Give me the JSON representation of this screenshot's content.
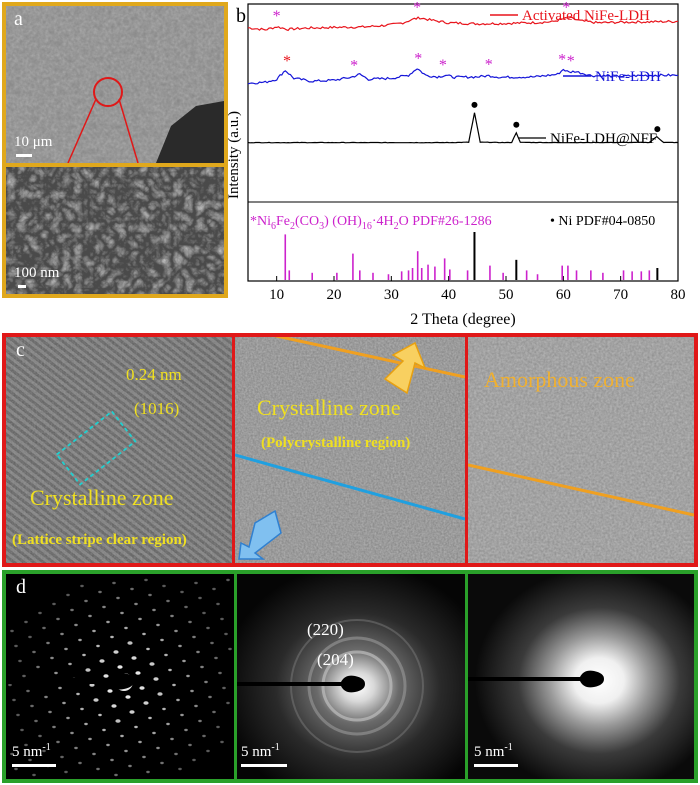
{
  "panel_a": {
    "letter": "a",
    "scale_top": "10 μm",
    "scale_bottom": "100 nm"
  },
  "panel_b": {
    "letter": "b",
    "legend": {
      "activated": "Activated NiFe-LDH",
      "nife": "NiFe-LDH",
      "nff": "NiFe-LDH@NFF"
    },
    "pdf_label_ni6": "*Ni",
    "pdf_label_fe": "6",
    "pdf_label_rest": "Fe",
    "pdf_label_sub2": "2",
    "pdf_label_co3": "(CO",
    "pdf_label_sub3": "3",
    "pdf_label_oh": ") (OH)",
    "pdf_label_sub16": "16",
    "pdf_label_tail": "·4H",
    "pdf_label_sub2b": "2",
    "pdf_label_end": "O PDF#26-1286",
    "pdf_ni": "• Ni PDF#04-0850",
    "colors": {
      "activated": "#e8141c",
      "nife": "#1414d8",
      "nff": "#000000",
      "ref": "#cc22cc"
    }
  },
  "chart_data": {
    "type": "line",
    "xlabel": "2 Theta (degree)",
    "ylabel": "Intensity (a.u.)",
    "xlim": [
      5,
      80
    ],
    "xticks": [
      "10",
      "20",
      "30",
      "40",
      "50",
      "60",
      "70",
      "80"
    ],
    "series": [
      {
        "name": "Activated NiFe-LDH",
        "x": [
          5,
          8,
          10,
          12,
          15,
          20,
          25,
          28,
          30,
          32,
          34,
          35,
          37,
          40,
          45,
          50,
          55,
          58,
          60,
          61,
          63,
          66,
          70,
          75,
          80
        ],
        "y": [
          0.88,
          0.87,
          0.885,
          0.872,
          0.878,
          0.882,
          0.884,
          0.89,
          0.895,
          0.905,
          0.925,
          0.93,
          0.918,
          0.905,
          0.9,
          0.902,
          0.906,
          0.91,
          0.925,
          0.93,
          0.915,
          0.905,
          0.908,
          0.91,
          0.912
        ]
      },
      {
        "name": "NiFe-LDH",
        "x": [
          5,
          8,
          10,
          11.5,
          13,
          16,
          20,
          23,
          24.5,
          26,
          30,
          33,
          34.5,
          36,
          38,
          39.5,
          41,
          45,
          47,
          49,
          55,
          59,
          60,
          61,
          62,
          65,
          70,
          75,
          80
        ],
        "y": [
          0.6,
          0.605,
          0.62,
          0.665,
          0.625,
          0.61,
          0.615,
          0.63,
          0.645,
          0.62,
          0.625,
          0.64,
          0.675,
          0.64,
          0.632,
          0.64,
          0.63,
          0.632,
          0.638,
          0.63,
          0.632,
          0.645,
          0.67,
          0.655,
          0.66,
          0.638,
          0.635,
          0.64,
          0.64
        ]
      },
      {
        "name": "NiFe-LDH@NFF",
        "x": [
          5,
          40,
          43.5,
          44.5,
          45.5,
          50,
          51,
          51.8,
          52.5,
          60,
          75,
          76.3,
          77.5,
          80
        ],
        "y": [
          0.3,
          0.3,
          0.302,
          0.45,
          0.302,
          0.3,
          0.301,
          0.35,
          0.301,
          0.3,
          0.301,
          0.33,
          0.301,
          0.3
        ]
      }
    ],
    "reference_ldh_peaks": [
      {
        "x": 11.5,
        "h": 0.95
      },
      {
        "x": 12.2,
        "h": 0.2
      },
      {
        "x": 16.2,
        "h": 0.15
      },
      {
        "x": 20.5,
        "h": 0.15
      },
      {
        "x": 23.3,
        "h": 0.55
      },
      {
        "x": 24.5,
        "h": 0.2
      },
      {
        "x": 26.8,
        "h": 0.15
      },
      {
        "x": 29.5,
        "h": 0.12
      },
      {
        "x": 31.8,
        "h": 0.18
      },
      {
        "x": 33.0,
        "h": 0.2
      },
      {
        "x": 33.7,
        "h": 0.25
      },
      {
        "x": 34.6,
        "h": 0.6
      },
      {
        "x": 35.3,
        "h": 0.25
      },
      {
        "x": 36.4,
        "h": 0.32
      },
      {
        "x": 37.6,
        "h": 0.28
      },
      {
        "x": 39.3,
        "h": 0.45
      },
      {
        "x": 40.2,
        "h": 0.22
      },
      {
        "x": 43.3,
        "h": 0.2
      },
      {
        "x": 47.2,
        "h": 0.3
      },
      {
        "x": 49.5,
        "h": 0.15
      },
      {
        "x": 53.6,
        "h": 0.2
      },
      {
        "x": 55.5,
        "h": 0.12
      },
      {
        "x": 59.8,
        "h": 0.3
      },
      {
        "x": 60.8,
        "h": 0.3
      },
      {
        "x": 62.3,
        "h": 0.2
      },
      {
        "x": 64.8,
        "h": 0.2
      },
      {
        "x": 66.9,
        "h": 0.15
      },
      {
        "x": 70.5,
        "h": 0.2
      },
      {
        "x": 72.0,
        "h": 0.18
      },
      {
        "x": 73.6,
        "h": 0.18
      },
      {
        "x": 75.0,
        "h": 0.2
      }
    ],
    "reference_ni_peaks": [
      {
        "x": 44.5,
        "h": 1.0
      },
      {
        "x": 51.8,
        "h": 0.42
      },
      {
        "x": 76.4,
        "h": 0.25
      }
    ],
    "asterisks_activated": [
      10,
      34.5,
      60.5
    ],
    "asterisks_nife": [
      11.8,
      23.5,
      34.7,
      39.0,
      47.0,
      59.8,
      61.3
    ],
    "dots_nff": [
      44.5,
      51.8,
      76.4
    ]
  },
  "panel_c": {
    "letter": "c",
    "lattice_spacing": "0.24 nm",
    "plane": "(1016)",
    "zone1_title": "Crystalline zone",
    "zone1_sub": "(Lattice stripe clear region)",
    "zone2_title": "Crystalline zone",
    "zone2_sub": "(Polycrystalline region)",
    "zone3_title": "Amorphous zone"
  },
  "panel_d": {
    "letter": "d",
    "scale1": "5 nm",
    "scale2": "5 nm",
    "scale3": "5 nm",
    "sup": "-1",
    "ring1": "(220)",
    "ring2": "(204)"
  }
}
